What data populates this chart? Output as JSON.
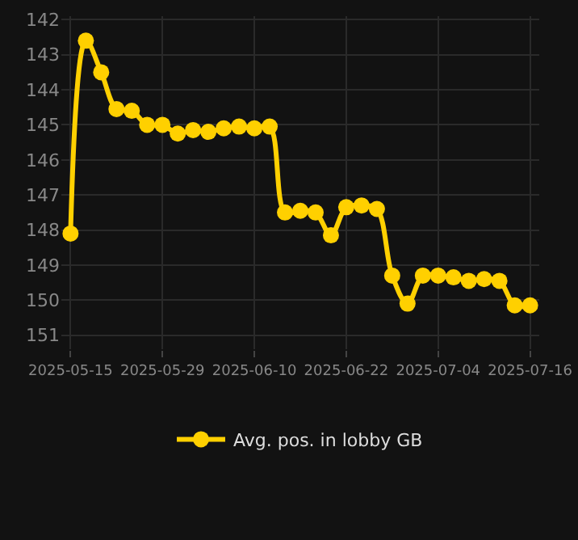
{
  "chart_data": {
    "type": "line",
    "categories": [
      "2025-05-15",
      null,
      null,
      null,
      null,
      null,
      "2025-05-29",
      null,
      null,
      null,
      null,
      null,
      "2025-06-10",
      null,
      null,
      null,
      null,
      null,
      "2025-06-22",
      null,
      null,
      null,
      null,
      null,
      "2025-07-04",
      null,
      null,
      null,
      null,
      null,
      "2025-07-16"
    ],
    "series": [
      {
        "name": "Avg. pos. in lobby GB",
        "color": "#ffd000",
        "values": [
          148.1,
          142.6,
          143.5,
          144.55,
          144.6,
          145.0,
          145.0,
          145.25,
          145.15,
          145.2,
          145.1,
          145.05,
          145.1,
          145.05,
          147.5,
          147.45,
          147.5,
          148.15,
          147.35,
          147.3,
          147.4,
          149.3,
          150.1,
          149.3,
          149.3,
          149.35,
          149.45,
          149.4,
          149.45,
          150.15,
          150.15
        ]
      }
    ],
    "ylim": [
      151.4,
      141.9
    ],
    "yticks": [
      142,
      143,
      144,
      145,
      146,
      147,
      148,
      149,
      150,
      151
    ],
    "grid": true,
    "legend": "bottom",
    "marker": "circle",
    "line_style": "solid"
  }
}
